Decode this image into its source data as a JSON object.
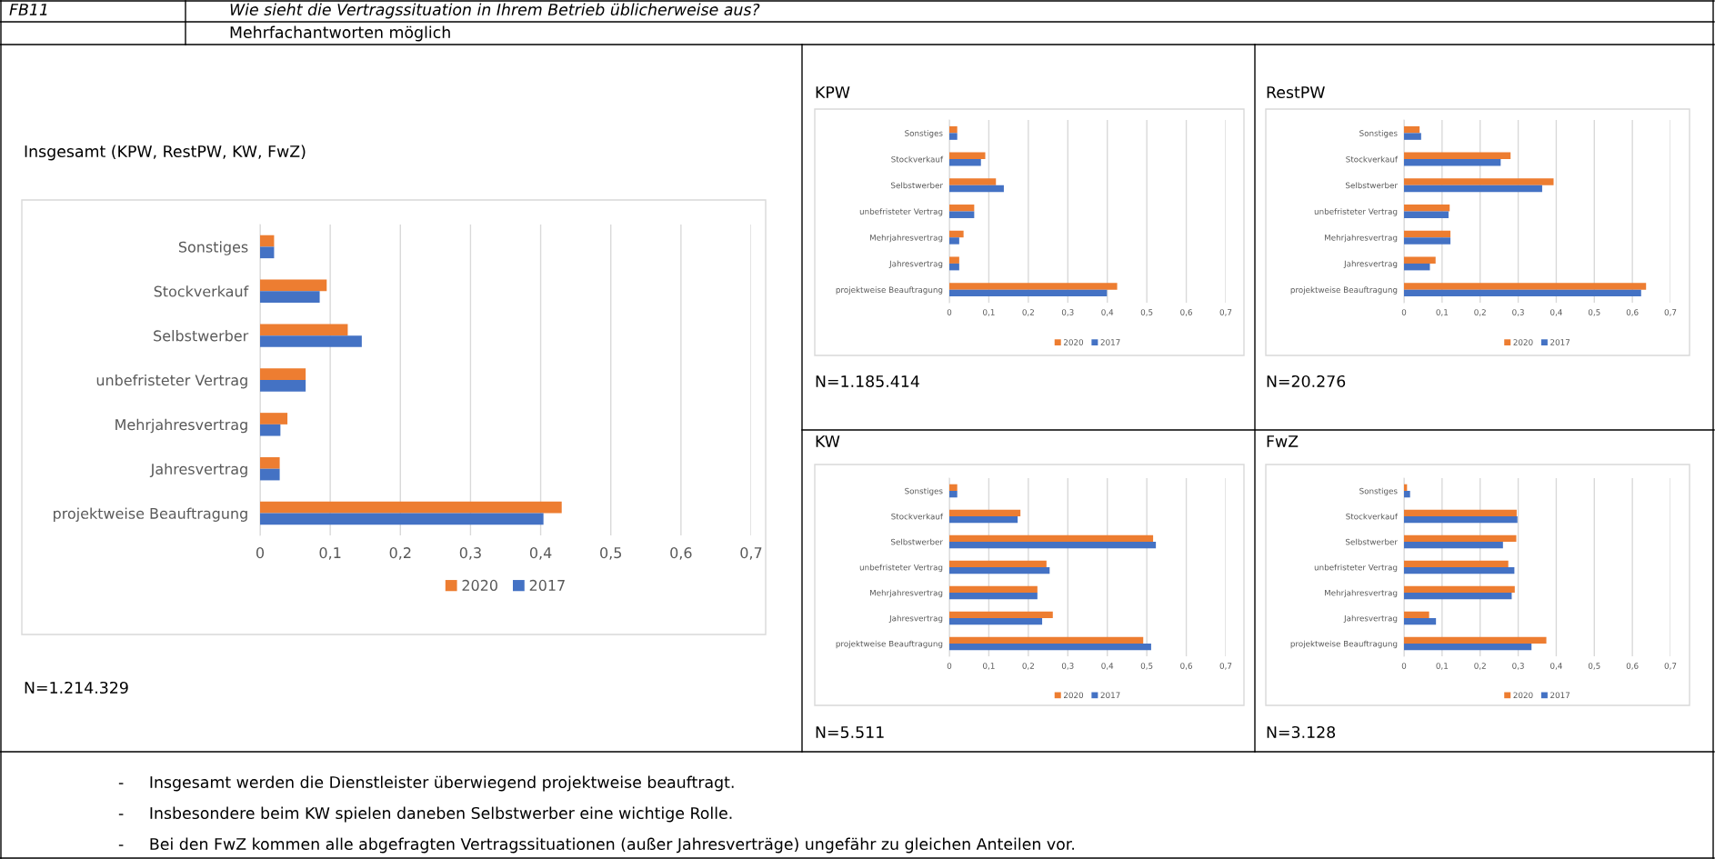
{
  "chart_data": [
    {
      "type": "other",
      "annotations": [
        "FB11",
        "Wie sieht die Vertragssituation in Ihrem Betrieb üblicherweise aus?",
        "Mehrfachantworten möglich",
        "-     Insgesamt werden die Dienstleister überwiegend projektweise beauftragt.",
        "-     Insbesondere beim KW spielen daneben Selbstwerber eine wichtige Rolle.",
        "-     Bei den FwZ kommen alle abgefragten Vertragssituationen (außer Jahresverträge) ungefähr zu gleichen Anteilen vor."
      ]
    },
    {
      "type": "bar",
      "orientation": "horizontal",
      "title": "Insgesamt (KPW, RestPW, KW, FwZ)",
      "categories": [
        "Sonstiges",
        "Stockverkauf",
        "Selbstwerber",
        "unbefristeter Vertrag",
        "Mehrjahresvertrag",
        "Jahresvertrag",
        "projektweise Beauftragung"
      ],
      "series": [
        {
          "name": "2020",
          "color": "#ed7d31",
          "values": [
            0.02,
            0.095,
            0.125,
            0.065,
            0.039,
            0.028,
            0.43
          ]
        },
        {
          "name": "2017",
          "color": "#4472c4",
          "values": [
            0.02,
            0.085,
            0.145,
            0.065,
            0.029,
            0.028,
            0.404
          ]
        }
      ],
      "xlim": [
        0,
        0.7
      ],
      "xticks": [
        0,
        {
          "value": 0.1,
          "label": "0,1"
        },
        {
          "value": 0.2,
          "label": "0,2"
        },
        {
          "value": 0.3,
          "label": "0,3"
        },
        {
          "value": 0.4,
          "label": "0,4"
        },
        {
          "value": 0.5,
          "label": "0,5"
        },
        {
          "value": 0.6,
          "label": "0,6"
        },
        {
          "value": 0.7,
          "label": "0,7"
        }
      ],
      "grid": "x",
      "legend": "bottom",
      "annotations": [
        "N=1.214.329"
      ]
    },
    {
      "type": "bar",
      "orientation": "horizontal",
      "title": "KPW",
      "categories": [
        "Sonstiges",
        "Stockverkauf",
        "Selbstwerber",
        "unbefristeter Vertrag",
        "Mehrjahresvertrag",
        "Jahresvertrag",
        "projektweise Beauftragung"
      ],
      "series": [
        {
          "name": "2020",
          "color": "#ed7d31",
          "values": [
            0.02,
            0.091,
            0.118,
            0.063,
            0.036,
            0.025,
            0.425
          ]
        },
        {
          "name": "2017",
          "color": "#4472c4",
          "values": [
            0.02,
            0.08,
            0.138,
            0.063,
            0.025,
            0.025,
            0.399
          ]
        }
      ],
      "xlim": [
        0,
        0.7
      ],
      "xticks": [
        0,
        {
          "value": 0.1,
          "label": "0,1"
        },
        {
          "value": 0.2,
          "label": "0,2"
        },
        {
          "value": 0.3,
          "label": "0,3"
        },
        {
          "value": 0.4,
          "label": "0,4"
        },
        {
          "value": 0.5,
          "label": "0,5"
        },
        {
          "value": 0.6,
          "label": "0,6"
        },
        {
          "value": 0.7,
          "label": "0,7"
        }
      ],
      "grid": "x",
      "legend": "bottom",
      "annotations": [
        "N=1.185.414"
      ]
    },
    {
      "type": "bar",
      "orientation": "horizontal",
      "title": "RestPW",
      "categories": [
        "Sonstiges",
        "Stockverkauf",
        "Selbstwerber",
        "unbefristeter Vertrag",
        "Mehrjahresvertrag",
        "Jahresvertrag",
        "projektweise Beauftragung"
      ],
      "series": [
        {
          "name": "2020",
          "color": "#ed7d31",
          "values": [
            0.041,
            0.28,
            0.393,
            0.12,
            0.122,
            0.083,
            0.636
          ]
        },
        {
          "name": "2017",
          "color": "#4472c4",
          "values": [
            0.045,
            0.254,
            0.363,
            0.117,
            0.122,
            0.068,
            0.623
          ]
        }
      ],
      "xlim": [
        0,
        0.7
      ],
      "xticks": [
        0,
        {
          "value": 0.1,
          "label": "0,1"
        },
        {
          "value": 0.2,
          "label": "0,2"
        },
        {
          "value": 0.3,
          "label": "0,3"
        },
        {
          "value": 0.4,
          "label": "0,4"
        },
        {
          "value": 0.5,
          "label": "0,5"
        },
        {
          "value": 0.6,
          "label": "0,6"
        },
        {
          "value": 0.7,
          "label": "0,7"
        }
      ],
      "grid": "x",
      "legend": "bottom",
      "annotations": [
        "N=20.276"
      ]
    },
    {
      "type": "bar",
      "orientation": "horizontal",
      "title": "KW",
      "categories": [
        "Sonstiges",
        "Stockverkauf",
        "Selbstwerber",
        "unbefristeter Vertrag",
        "Mehrjahresvertrag",
        "Jahresvertrag",
        "projektweise Beauftragung"
      ],
      "series": [
        {
          "name": "2020",
          "color": "#ed7d31",
          "values": [
            0.02,
            0.18,
            0.516,
            0.246,
            0.223,
            0.262,
            0.491
          ]
        },
        {
          "name": "2017",
          "color": "#4472c4",
          "values": [
            0.02,
            0.173,
            0.523,
            0.254,
            0.223,
            0.235,
            0.511
          ]
        }
      ],
      "xlim": [
        0,
        0.7
      ],
      "xticks": [
        0,
        {
          "value": 0.1,
          "label": "0,1"
        },
        {
          "value": 0.2,
          "label": "0,2"
        },
        {
          "value": 0.3,
          "label": "0,3"
        },
        {
          "value": 0.4,
          "label": "0,4"
        },
        {
          "value": 0.5,
          "label": "0,5"
        },
        {
          "value": 0.6,
          "label": "0,6"
        },
        {
          "value": 0.7,
          "label": "0,7"
        }
      ],
      "grid": "x",
      "legend": "bottom",
      "annotations": [
        "N=5.511"
      ]
    },
    {
      "type": "bar",
      "orientation": "horizontal",
      "title": "FwZ",
      "categories": [
        "Sonstiges",
        "Stockverkauf",
        "Selbstwerber",
        "unbefristeter Vertrag",
        "Mehrjahresvertrag",
        "Jahresvertrag",
        "projektweise Beauftragung"
      ],
      "series": [
        {
          "name": "2020",
          "color": "#ed7d31",
          "values": [
            0.008,
            0.296,
            0.295,
            0.274,
            0.291,
            0.066,
            0.374
          ]
        },
        {
          "name": "2017",
          "color": "#4472c4",
          "values": [
            0.016,
            0.298,
            0.26,
            0.29,
            0.283,
            0.084,
            0.335
          ]
        }
      ],
      "xlim": [
        0,
        0.7
      ],
      "xticks": [
        0,
        {
          "value": 0.1,
          "label": "0,1"
        },
        {
          "value": 0.2,
          "label": "0,2"
        },
        {
          "value": 0.3,
          "label": "0,3"
        },
        {
          "value": 0.4,
          "label": "0,4"
        },
        {
          "value": 0.5,
          "label": "0,5"
        },
        {
          "value": 0.6,
          "label": "0,6"
        },
        {
          "value": 0.7,
          "label": "0,7"
        }
      ],
      "grid": "x",
      "legend": "bottom",
      "annotations": [
        "N=3.128"
      ]
    }
  ]
}
